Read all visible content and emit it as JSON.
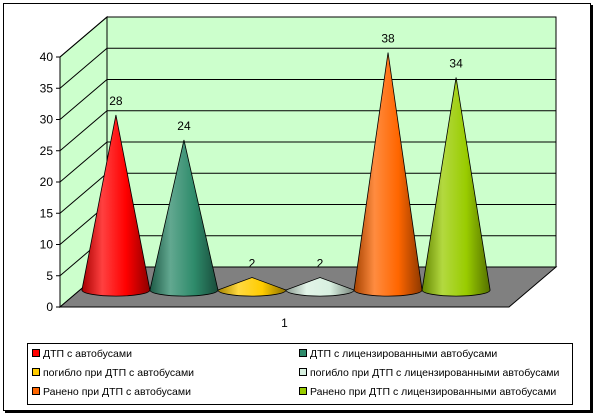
{
  "chart_data": {
    "type": "bar",
    "shape": "cone-3d",
    "categories": [
      "1"
    ],
    "ylim": [
      0,
      40
    ],
    "yticks": [
      0,
      5,
      10,
      15,
      20,
      25,
      30,
      35,
      40
    ],
    "series": [
      {
        "name": "ДТП с автобусами",
        "values": [
          28
        ],
        "color": "#ff0000"
      },
      {
        "name": "ДТП с лицензированными автобусами",
        "values": [
          24
        ],
        "color": "#2e8b6b"
      },
      {
        "name": "погибло при ДТП с автобусами",
        "values": [
          2
        ],
        "color": "#ffcc00"
      },
      {
        "name": "погибло при ДТП с лицензированными автобусами",
        "values": [
          2
        ],
        "color": "#d8f0e0"
      },
      {
        "name": "Ранено при ДТП с автобусами",
        "values": [
          38
        ],
        "color": "#ff6600"
      },
      {
        "name": "Ранено при ДТП с лицензированными автобусами",
        "values": [
          34
        ],
        "color": "#99cc00"
      }
    ],
    "grid": true,
    "legend_position": "bottom",
    "plot_background": "#ccffcc",
    "floor_color": "#808080"
  }
}
